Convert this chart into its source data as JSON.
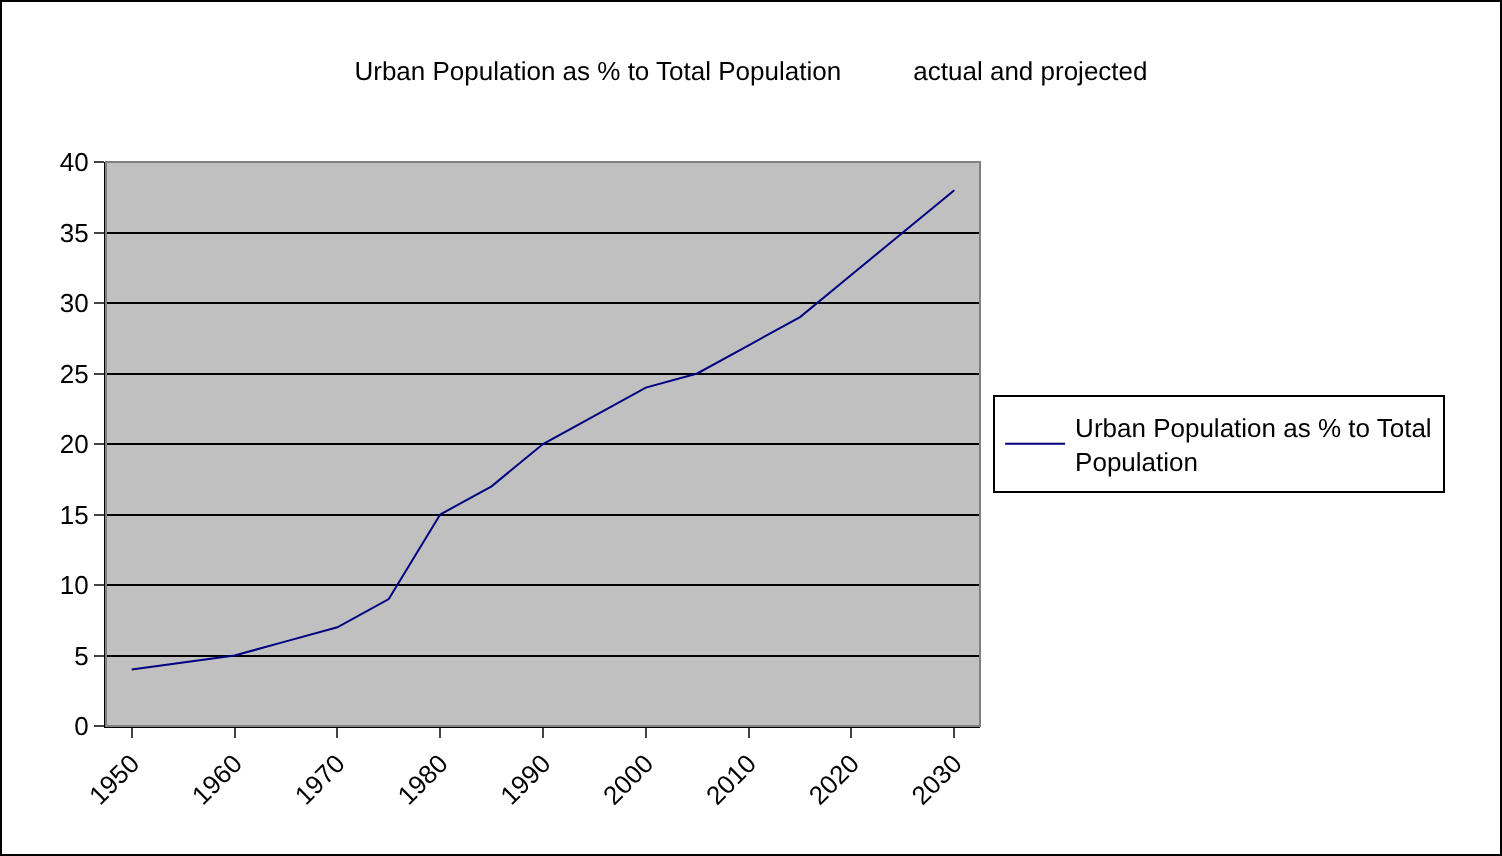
{
  "chart_data": {
    "type": "line",
    "title": "Urban Population as % to Total Population          actual and projected",
    "x": [
      1950,
      1955,
      1960,
      1965,
      1970,
      1975,
      1980,
      1985,
      1990,
      1995,
      2000,
      2005,
      2010,
      2015,
      2020,
      2025,
      2030
    ],
    "series": [
      {
        "name": "Urban Population as % to Total Population",
        "color": "#000080",
        "values": [
          4,
          4.5,
          5,
          6,
          7,
          9,
          15,
          17,
          20,
          22,
          24,
          25,
          27,
          29,
          32,
          35,
          38
        ]
      }
    ],
    "xlim": [
      1947.5,
      2032.5
    ],
    "xticks": [
      1950,
      1960,
      1970,
      1980,
      1990,
      2000,
      2010,
      2020,
      2030
    ],
    "ylim": [
      0,
      40
    ],
    "yticks": [
      0,
      5,
      10,
      15,
      20,
      25,
      30,
      35,
      40
    ],
    "grid": "y",
    "legend": "right",
    "marker": "none",
    "line_style": "solid"
  }
}
